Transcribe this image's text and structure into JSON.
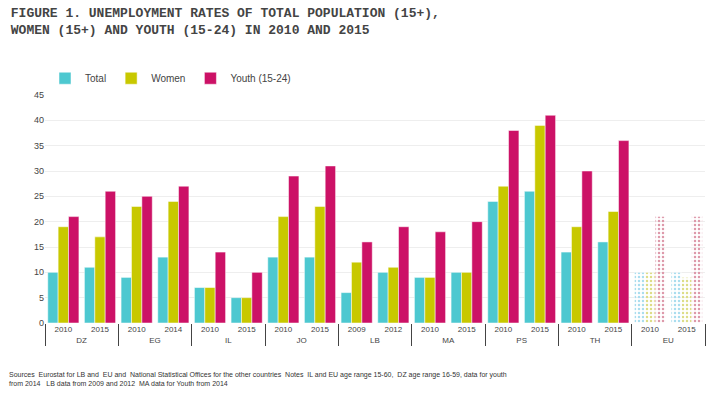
{
  "chart_data": {
    "type": "bar",
    "title": "FIGURE 1. UNEMPLOYMENT RATES OF TOTAL POPULATION (15+),\nWOMEN (15+) AND YOUTH (15-24) IN 2010 AND 2015",
    "categories": [
      [
        "DZ",
        "2010"
      ],
      [
        "DZ",
        "2015"
      ],
      [
        "EG",
        "2010"
      ],
      [
        "EG",
        "2014"
      ],
      [
        "IL",
        "2010"
      ],
      [
        "IL",
        "2015"
      ],
      [
        "JO",
        "2010"
      ],
      [
        "JO",
        "2015"
      ],
      [
        "LB",
        "2009"
      ],
      [
        "LB",
        "2012"
      ],
      [
        "MA",
        "2010"
      ],
      [
        "MA",
        "2015"
      ],
      [
        "PS",
        "2010"
      ],
      [
        "PS",
        "2015"
      ],
      [
        "TH",
        "2010"
      ],
      [
        "TH",
        "2015"
      ],
      [
        "EU",
        "2010"
      ],
      [
        "EU",
        "2015"
      ]
    ],
    "series": [
      {
        "name": "Total",
        "color": "#4dc8d0",
        "colors": [
          "#4dc8d0",
          "#4dc8d0",
          "#4dc8d0",
          "#4dc8d0",
          "#4dc8d0",
          "#4dc8d0",
          "#4dc8d0",
          "#4dc8d0",
          "#4dc8d0",
          "#4dc8d0",
          "#4dc8d0",
          "#4dc8d0",
          "#4dc8d0",
          "#4dc8d0",
          "#4dc8d0",
          "#4dc8d0",
          "#aaddee",
          "#aaddee"
        ],
        "values": [
          10,
          11,
          9,
          13,
          7,
          5,
          13,
          13,
          6,
          10,
          9,
          10,
          24,
          26,
          14,
          16,
          10,
          10
        ]
      },
      {
        "name": "Women",
        "color": "#c8c800",
        "colors": [
          "#c8c800",
          "#c8c800",
          "#c8c800",
          "#c8c800",
          "#c8c800",
          "#c8c800",
          "#c8c800",
          "#c8c800",
          "#c8c800",
          "#c8c800",
          "#c8c800",
          "#c8c800",
          "#c8c800",
          "#c8c800",
          "#c8c800",
          "#c8c800",
          "#dddd88",
          "#dddd88"
        ],
        "values": [
          19,
          17,
          23,
          24,
          7,
          5,
          21,
          23,
          12,
          11,
          9,
          10,
          27,
          39,
          19,
          22,
          10,
          9
        ]
      },
      {
        "name": "Youth (15-24)",
        "color": "#cc1166",
        "colors": [
          "#cc1166",
          "#cc1166",
          "#cc1166",
          "#cc1166",
          "#cc1166",
          "#cc1166",
          "#cc1166",
          "#cc1166",
          "#cc1166",
          "#cc1166",
          "#cc1166",
          "#cc1166",
          "#cc1166",
          "#cc1166",
          "#cc1166",
          "#cc1166",
          "#dd99aa",
          "#dd99aa"
        ],
        "values": [
          21,
          26,
          25,
          27,
          14,
          10,
          29,
          31,
          16,
          19,
          18,
          20,
          38,
          41,
          30,
          36,
          21,
          21
        ]
      }
    ],
    "ylim": [
      0,
      45
    ],
    "yticks": [
      0,
      5,
      10,
      15,
      20,
      25,
      30,
      35,
      40,
      45
    ],
    "grid": true,
    "legend": "upper left",
    "annotations": [
      "Sources  Eurostat for LB and  EU and  National Statistical Offices for the other countries  Notes  IL and EU age range 15-60,  DZ age range 16-59, data for youth\n               from 2014   LB data from 2009 and 2012  MA data for Youth from 2014"
    ]
  }
}
